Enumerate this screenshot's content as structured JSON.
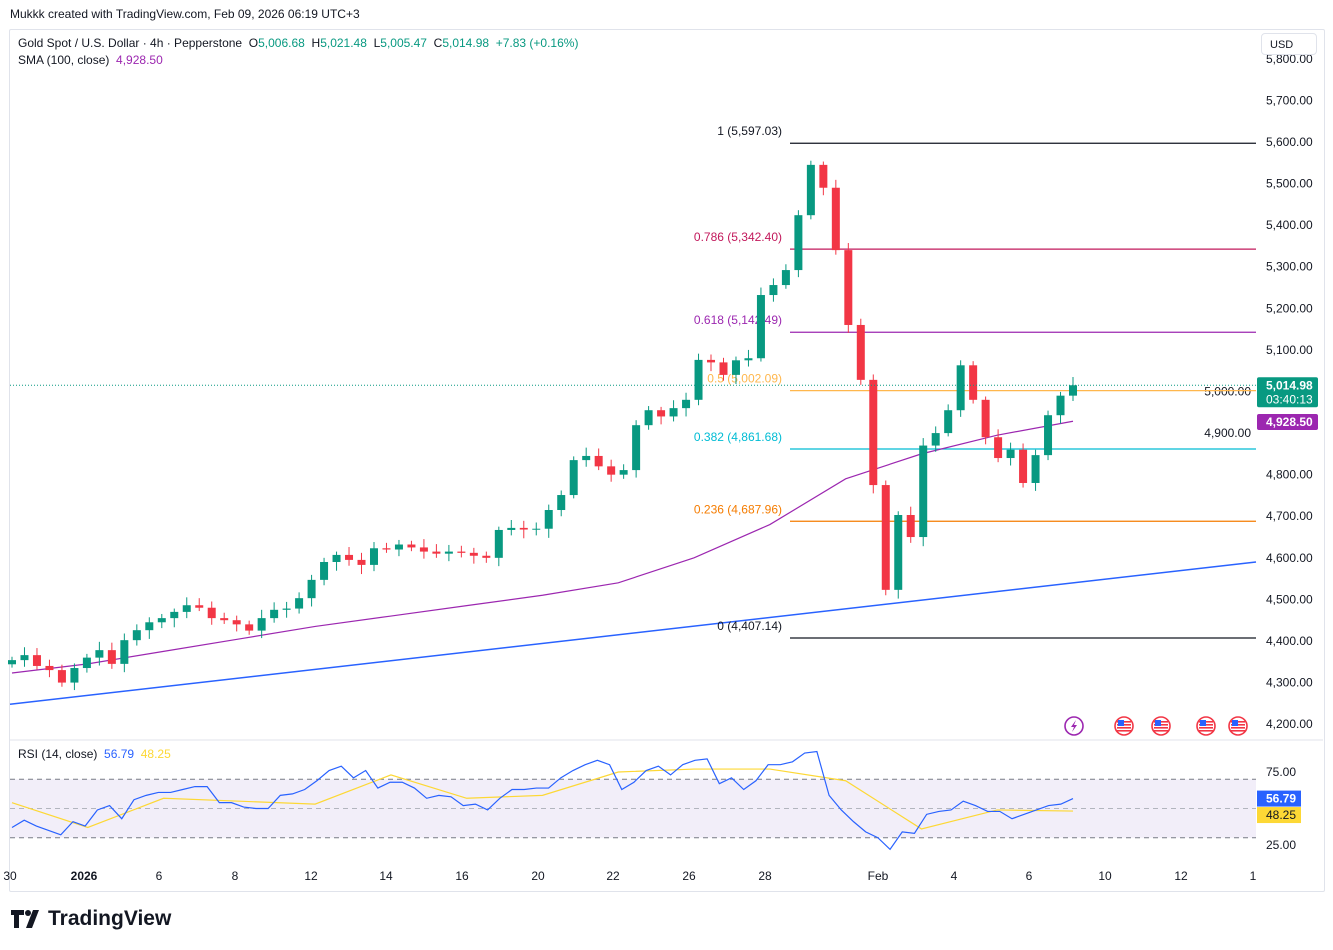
{
  "credit": "Mukkk created with TradingView.com, Feb 09, 2026 06:19 UTC+3",
  "legend": {
    "symbol": "Gold Spot / U.S. Dollar · 4h · Pepperstone",
    "o_label": "O",
    "o": "5,006.68",
    "h_label": "H",
    "h": "5,021.48",
    "l_label": "L",
    "l": "5,005.47",
    "c_label": "C",
    "c": "5,014.98",
    "change": "+7.83 (+0.16%)",
    "sma_label": "SMA (100, close)",
    "sma_value": "4,928.50"
  },
  "rsi_legend": {
    "label": "RSI (14, close)",
    "rsi": "56.79",
    "ma": "48.25"
  },
  "currency": "USD",
  "logo_text": "TradingView",
  "colors": {
    "up": "#089981",
    "down": "#f23645",
    "sma": "#9c27b0",
    "trend": "#2962ff",
    "rsi": "#2962ff",
    "rsi_ma": "#fdd835",
    "rsi_band": "#7e57c2"
  },
  "chart_data": {
    "type": "candlestick",
    "timeframe": "4h",
    "price_axis": {
      "range": [
        4200,
        5800
      ],
      "ticks": [
        "4,200.00",
        "4,300.00",
        "4,400.00",
        "4,500.00",
        "4,600.00",
        "4,700.00",
        "4,800.00",
        "4,900.00",
        "5,000.00",
        "5,100.00",
        "5,200.00",
        "5,300.00",
        "5,400.00",
        "5,500.00",
        "5,600.00",
        "5,700.00",
        "5,800.00"
      ]
    },
    "time_axis": {
      "ticks": [
        "30",
        "2026",
        "6",
        "8",
        "12",
        "14",
        "16",
        "20",
        "22",
        "26",
        "28",
        "Feb",
        "4",
        "6",
        "10",
        "12",
        "1"
      ]
    },
    "closes": [
      4354,
      4366,
      4340,
      4330,
      4300,
      4335,
      4360,
      4378,
      4345,
      4402,
      4426,
      4445,
      4455,
      4470,
      4486,
      4480,
      4455,
      4450,
      4440,
      4425,
      4455,
      4475,
      4478,
      4503,
      4547,
      4590,
      4607,
      4595,
      4583,
      4623,
      4620,
      4632,
      4625,
      4615,
      4610,
      4615,
      4612,
      4605,
      4600,
      4667,
      4672,
      4668,
      4670,
      4715,
      4751,
      4835,
      4845,
      4820,
      4800,
      4811,
      4919,
      4955,
      4940,
      4960,
      4980,
      5076,
      5070,
      5040,
      5075,
      5080,
      5232,
      5256,
      5292,
      5424,
      5545,
      5490,
      5340,
      5160,
      5028,
      4775,
      4523,
      4703,
      4650,
      4870,
      4900,
      4955,
      5063,
      4980,
      4890,
      4840,
      4860,
      4780,
      4847,
      4943,
      4990,
      5014.98
    ],
    "sma100": [
      4323,
      4345,
      4375,
      4405,
      4435,
      4460,
      4485,
      4510,
      4540,
      4600,
      4680,
      4790,
      4850,
      4895,
      4928.5
    ],
    "trendline": {
      "from": 4248,
      "to": 4590
    },
    "last_price": {
      "value": "5,014.98",
      "countdown": "03:40:13"
    },
    "sma_last": "4,928.50",
    "fib_levels": [
      {
        "ratio": 1,
        "price": 5597.03,
        "label": "1 (5,597.03)",
        "color": "#131722"
      },
      {
        "ratio": 0.786,
        "price": 5342.4,
        "label": "0.786 (5,342.40)",
        "color": "#c2185b"
      },
      {
        "ratio": 0.618,
        "price": 5142.49,
        "label": "0.618 (5,142.49)",
        "color": "#9c27b0"
      },
      {
        "ratio": 0.5,
        "price": 5002.09,
        "label": "0.5 (5,002.09)",
        "color": "#ffb74d"
      },
      {
        "ratio": 0.382,
        "price": 4861.68,
        "label": "0.382 (4,861.68)",
        "color": "#00bcd4"
      },
      {
        "ratio": 0.236,
        "price": 4687.96,
        "label": "0.236 (4,687.96)",
        "color": "#f57c00"
      },
      {
        "ratio": 0,
        "price": 4407.14,
        "label": "0 (4,407.14)",
        "color": "#131722"
      }
    ],
    "events": [
      "lightning-icon",
      "us-flag-icon",
      "us-flag-icon",
      "us-flag-icon",
      "us-flag-icon"
    ],
    "rsi": {
      "range": [
        0,
        100
      ],
      "upper": 70,
      "lower": 30,
      "middle": 50,
      "ticks": [
        "75.00",
        "25.00"
      ],
      "values": [
        37,
        42,
        38,
        35,
        32,
        41,
        38,
        49,
        52,
        43,
        56,
        59,
        61,
        61,
        63,
        65,
        65,
        54,
        54,
        51,
        50,
        50,
        59,
        60,
        63,
        69,
        76,
        79,
        71,
        76,
        64,
        68,
        68,
        64,
        57,
        59,
        58,
        52,
        53,
        49,
        57,
        63,
        63,
        64,
        64,
        71,
        76,
        80,
        83,
        80,
        63,
        68,
        76,
        79,
        73,
        80,
        83,
        84,
        67,
        71,
        63,
        69,
        80,
        80,
        82,
        88,
        89,
        59,
        49,
        41,
        34,
        30,
        22,
        34,
        33,
        46,
        48,
        49,
        55,
        52,
        48,
        48,
        43,
        46,
        49,
        52,
        53,
        56.79
      ],
      "ma_values": [
        54,
        37,
        57,
        55,
        53,
        73,
        57,
        59,
        75,
        77,
        77,
        69,
        36,
        49,
        48.25
      ],
      "last": "56.79",
      "ma_last": "48.25"
    }
  }
}
